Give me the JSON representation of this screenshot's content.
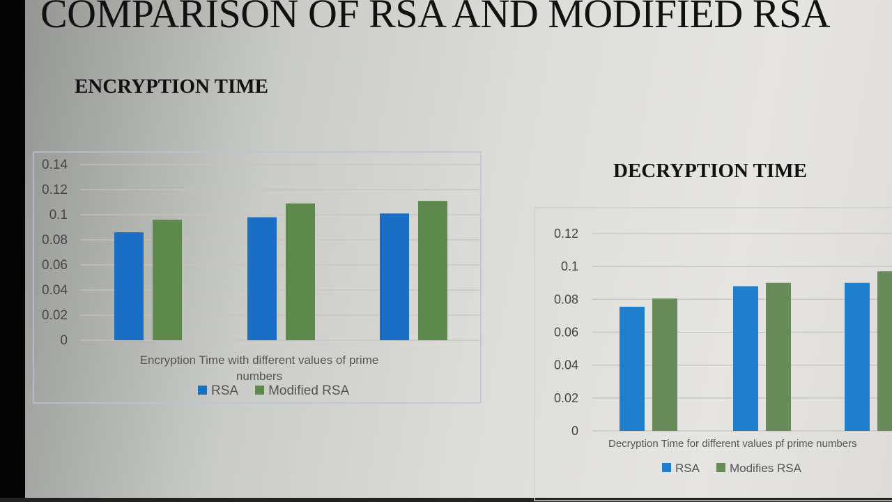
{
  "slide": {
    "title": "COMPARISON OF RSA AND MODIFIED RSA",
    "encryption_heading": "ENCRYPTION TIME",
    "decryption_heading": "DECRYPTION TIME"
  },
  "chart_data": [
    {
      "type": "bar",
      "title": "",
      "xlabel": "Encryption Time with different values of prime numbers",
      "ylabel": "",
      "categories": [
        "",
        "",
        ""
      ],
      "ylim": [
        0,
        0.14
      ],
      "yticks": [
        "0",
        "0.02",
        "0.04",
        "0.06",
        "0.08",
        "0.1",
        "0.12",
        "0.14"
      ],
      "grid": true,
      "legend": "bottom",
      "series": [
        {
          "name": "RSA",
          "color": "#1a6fc4",
          "values": [
            0.086,
            0.098,
            0.101
          ]
        },
        {
          "name": "Modified RSA",
          "color": "#5d8a4c",
          "values": [
            0.096,
            0.109,
            0.111
          ]
        }
      ]
    },
    {
      "type": "bar",
      "title": "",
      "xlabel": "Decryption Time for different values pf prime numbers",
      "ylabel": "",
      "categories": [
        "",
        "",
        ""
      ],
      "ylim": [
        0,
        0.12
      ],
      "yticks": [
        "0",
        "0.02",
        "0.04",
        "0.06",
        "0.08",
        "0.1",
        "0.12"
      ],
      "grid": true,
      "legend": "bottom",
      "series": [
        {
          "name": "RSA",
          "color": "#1f7fcc",
          "values": [
            0.0755,
            0.088,
            0.09
          ]
        },
        {
          "name": "Modifies RSA",
          "color": "#668a58",
          "values": [
            0.0805,
            0.09,
            0.097
          ]
        }
      ]
    }
  ]
}
